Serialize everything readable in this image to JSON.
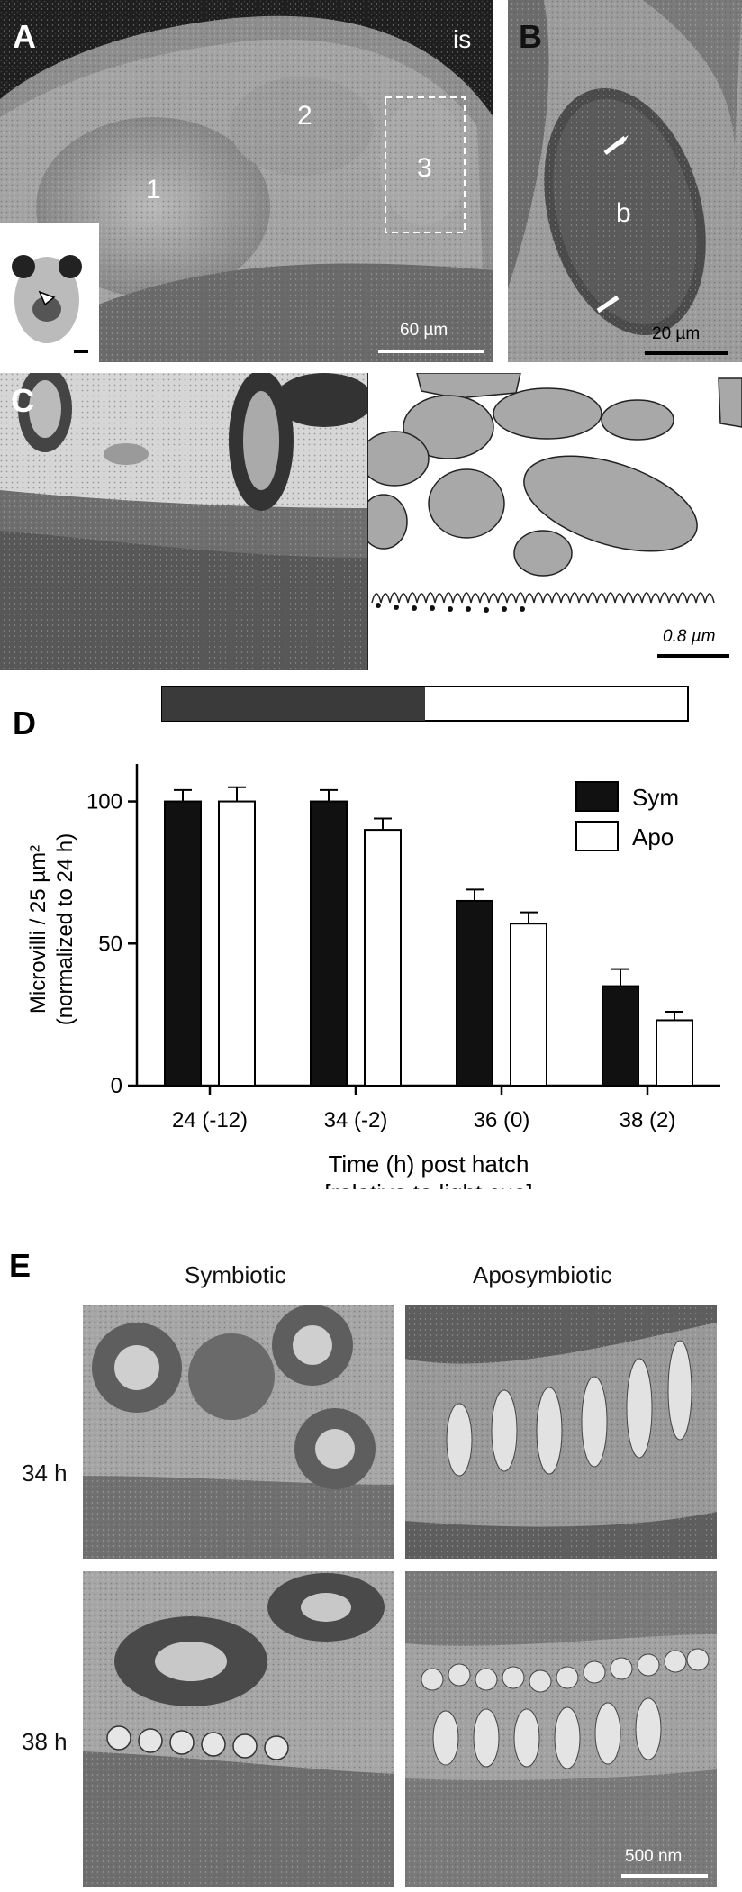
{
  "panels": {
    "A": {
      "letter": "A",
      "corner_label": "is",
      "region_labels": [
        "1",
        "2",
        "3"
      ],
      "scalebar": "60 µm"
    },
    "B": {
      "letter": "B",
      "region_label": "b",
      "scalebar": "20 µm"
    },
    "C": {
      "letter": "C",
      "scalebar": "0.8 µm"
    },
    "D": {
      "letter": "D"
    },
    "E": {
      "letter": "E",
      "col_headers": [
        "Symbiotic",
        "Aposymbiotic"
      ],
      "row_labels": [
        "34 h",
        "38 h"
      ],
      "scalebar": "500 nm"
    }
  },
  "chart_data": {
    "type": "bar",
    "categories": [
      "24 (-12)",
      "34 (-2)",
      "36 (0)",
      "38 (2)"
    ],
    "series": [
      {
        "name": "Sym",
        "color": "#111111",
        "values": [
          100,
          100,
          65,
          35
        ],
        "errors": [
          4,
          4,
          4,
          6
        ]
      },
      {
        "name": "Apo",
        "color": "#ffffff",
        "values": [
          100,
          90,
          57,
          23
        ],
        "errors": [
          5,
          4,
          4,
          3
        ]
      }
    ],
    "ylabel_line1": "Microvilli / 25 µm²",
    "ylabel_line2": "(normalized to 24 h)",
    "xlabel_line1": "Time (h) post hatch",
    "xlabel_line2": "[relative to light cue]",
    "yticks": [
      0,
      50,
      100
    ],
    "ylim": [
      0,
      110
    ],
    "legend_position": "top-right",
    "light_dark_bar": {
      "dark_fraction": 0.5
    }
  }
}
